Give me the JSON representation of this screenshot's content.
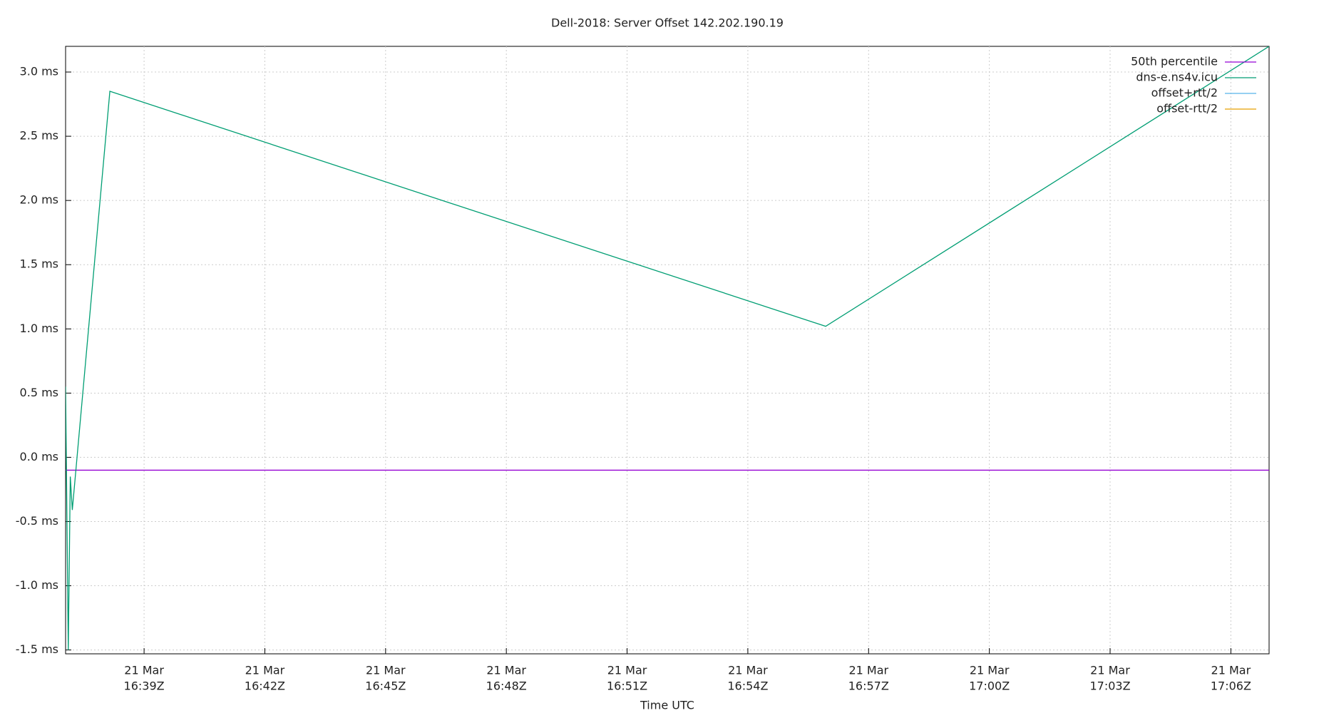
{
  "chart_data": {
    "type": "line",
    "title": "Dell-2018: Server Offset 142.202.190.19",
    "x_label": "Time UTC",
    "xlim": [
      "16:37:03",
      "17:06:57"
    ],
    "xticks": [
      {
        "value": "16:39:00",
        "label": [
          "21 Mar",
          "16:39Z"
        ]
      },
      {
        "value": "16:42:00",
        "label": [
          "21 Mar",
          "16:42Z"
        ]
      },
      {
        "value": "16:45:00",
        "label": [
          "21 Mar",
          "16:45Z"
        ]
      },
      {
        "value": "16:48:00",
        "label": [
          "21 Mar",
          "16:48Z"
        ]
      },
      {
        "value": "16:51:00",
        "label": [
          "21 Mar",
          "16:51Z"
        ]
      },
      {
        "value": "16:54:00",
        "label": [
          "21 Mar",
          "16:54Z"
        ]
      },
      {
        "value": "16:57:00",
        "label": [
          "21 Mar",
          "16:57Z"
        ]
      },
      {
        "value": "17:00:00",
        "label": [
          "21 Mar",
          "17:00Z"
        ]
      },
      {
        "value": "17:03:00",
        "label": [
          "21 Mar",
          "17:03Z"
        ]
      },
      {
        "value": "17:06:00",
        "label": [
          "21 Mar",
          "17:06Z"
        ]
      }
    ],
    "ylim": [
      -1.53,
      3.2
    ],
    "yticks": [
      {
        "value": -1.5,
        "label": "-1.5 ms"
      },
      {
        "value": -1,
        "label": "-1.0 ms"
      },
      {
        "value": -0.5,
        "label": "-0.5 ms"
      },
      {
        "value": 0,
        "label": "0.0 ms"
      },
      {
        "value": 0.5,
        "label": "0.5 ms"
      },
      {
        "value": 1,
        "label": "1.0 ms"
      },
      {
        "value": 1.5,
        "label": "1.5 ms"
      },
      {
        "value": 2,
        "label": "2.0 ms"
      },
      {
        "value": 2.5,
        "label": "2.5 ms"
      },
      {
        "value": 3,
        "label": "3.0 ms"
      }
    ],
    "grid": true,
    "legend": "top-right",
    "series": [
      {
        "name": "50th percentile",
        "color": "#9400d3",
        "x": [
          "16:37:03",
          "17:06:57"
        ],
        "values": [
          -0.1,
          -0.1
        ]
      },
      {
        "name": "dns-e.ns4v.icu",
        "color": "#009e73",
        "x": [
          "16:37:03",
          "16:37:07",
          "16:37:10",
          "16:37:13",
          "16:38:09",
          "16:55:56",
          "17:06:57"
        ],
        "values": [
          0.55,
          -1.5,
          -0.15,
          -0.41,
          2.85,
          1.02,
          3.2
        ]
      },
      {
        "name": "offset+rtt/2",
        "color": "#56b4e9",
        "x": [],
        "values": []
      },
      {
        "name": "offset-rtt/2",
        "color": "#e69f00",
        "x": [],
        "values": []
      }
    ]
  }
}
